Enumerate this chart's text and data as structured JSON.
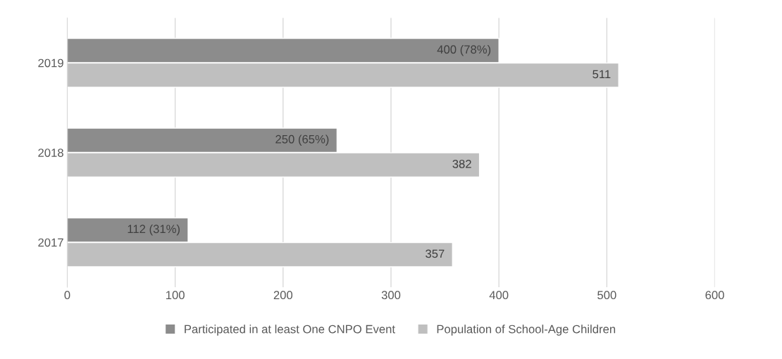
{
  "chart_data": {
    "type": "bar",
    "orientation": "horizontal",
    "categories": [
      "2019",
      "2018",
      "2017"
    ],
    "series": [
      {
        "name": "Participated in at least One CNPO Event",
        "color": "#8c8c8c",
        "values": [
          400,
          250,
          112
        ],
        "value_labels": [
          "400 (78%)",
          "250 (65%)",
          "112 (31%)"
        ]
      },
      {
        "name": "Population of School-Age Children",
        "color": "#bfbfbf",
        "values": [
          511,
          382,
          357
        ],
        "value_labels": [
          "511",
          "382",
          "357"
        ]
      }
    ],
    "xlim": [
      0,
      600
    ],
    "xticks": [
      0,
      100,
      200,
      300,
      400,
      500,
      600
    ],
    "grid": "x",
    "legend": "bottom"
  }
}
